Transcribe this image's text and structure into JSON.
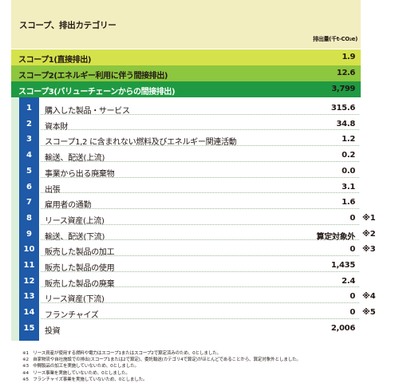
{
  "header": {
    "title": "スコープ、排出カテゴリー",
    "unit": "排出量(千t-CO₂e)"
  },
  "scopes": [
    {
      "label": "スコープ1(直接排出)",
      "value": "1.9"
    },
    {
      "label": "スコープ2(エネルギー利用に伴う間接排出)",
      "value": "12.6"
    },
    {
      "label": "スコープ3(バリューチェーンからの間接排出)",
      "value": "3,799"
    }
  ],
  "categories": [
    {
      "num": "1",
      "name": "購入した製品・サービス",
      "value": "315.6",
      "note": ""
    },
    {
      "num": "2",
      "name": "資本財",
      "value": "34.8",
      "note": ""
    },
    {
      "num": "3",
      "name": "スコープ1,2 に含まれない燃料及びエネルギー関連活動",
      "value": "1.2",
      "note": ""
    },
    {
      "num": "4",
      "name": "輸送、配送(上流)",
      "value": "0.2",
      "note": ""
    },
    {
      "num": "5",
      "name": "事業から出る廃棄物",
      "value": "0.0",
      "note": ""
    },
    {
      "num": "6",
      "name": "出張",
      "value": "3.1",
      "note": ""
    },
    {
      "num": "7",
      "name": "雇用者の通勤",
      "value": "1.6",
      "note": ""
    },
    {
      "num": "8",
      "name": "リース資産(上流)",
      "value": "0",
      "note": "※1"
    },
    {
      "num": "9",
      "name": "輸送、配送(下流)",
      "value": "算定対象外",
      "note": "※2"
    },
    {
      "num": "10",
      "name": "販売した製品の加工",
      "value": "0",
      "note": "※3"
    },
    {
      "num": "11",
      "name": "販売した製品の使用",
      "value": "1,435",
      "note": ""
    },
    {
      "num": "12",
      "name": "販売した製品の廃棄",
      "value": "2.4",
      "note": ""
    },
    {
      "num": "13",
      "name": "リース資産(下流)",
      "value": "0",
      "note": "※4"
    },
    {
      "num": "14",
      "name": "フランチャイズ",
      "value": "0",
      "note": "※5"
    },
    {
      "num": "15",
      "name": "投資",
      "value": "2,006",
      "note": ""
    }
  ],
  "footnotes": [
    "※1　リース資産が使用する燃料や電力はスコープ1またはスコープ2で算定済みのため、0としました。",
    "※2　自家物流や自社施設での排出(スコープ1または2で算定)、委託輸送(カテゴリ4で算定)がほとんどであることから、算定対象外としました。",
    "※3　中間製品の加工を実施していないため、0としました。",
    "※4　リース事業を実施していないため、0としました。",
    "※5　フランチャイズ事業を実施していないため、0としました。"
  ],
  "colors": {
    "header_bg": "#f3eec0",
    "scope1_bg": "#d6e24b",
    "scope2_bg": "#8dc63f",
    "scope3_bg": "#1f9a42",
    "number_column_bg": "#1e5aa8",
    "table_bg": "#dcefdb"
  }
}
